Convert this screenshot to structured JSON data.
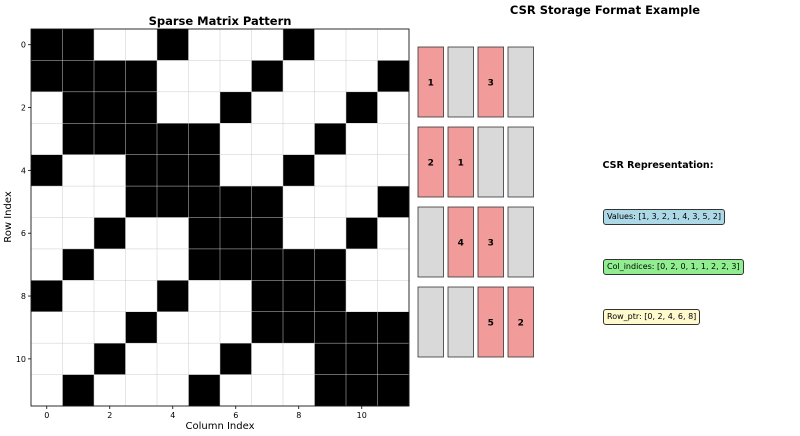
{
  "chart_data": [
    {
      "type": "heatmap",
      "title": "Sparse Matrix Pattern",
      "xlabel": "Column Index",
      "ylabel": "Row Index",
      "xticks": [
        "0",
        "2",
        "4",
        "6",
        "8",
        "10"
      ],
      "yticks": [
        "0",
        "2",
        "4",
        "6",
        "8",
        "10"
      ],
      "grid": true,
      "colors": {
        "filled": "#000000",
        "empty": "#ffffff",
        "grid": "#cccccc"
      },
      "matrix": [
        [
          1,
          1,
          0,
          0,
          1,
          0,
          0,
          0,
          1,
          0,
          0,
          0
        ],
        [
          1,
          1,
          1,
          1,
          0,
          0,
          0,
          1,
          0,
          0,
          0,
          1
        ],
        [
          0,
          1,
          1,
          1,
          0,
          0,
          1,
          0,
          0,
          0,
          1,
          0
        ],
        [
          0,
          1,
          1,
          1,
          1,
          1,
          0,
          0,
          0,
          1,
          0,
          0
        ],
        [
          1,
          0,
          0,
          1,
          1,
          1,
          0,
          0,
          1,
          0,
          0,
          0
        ],
        [
          0,
          0,
          0,
          1,
          1,
          1,
          1,
          1,
          0,
          0,
          0,
          1
        ],
        [
          0,
          0,
          1,
          0,
          0,
          1,
          1,
          1,
          0,
          0,
          1,
          0
        ],
        [
          0,
          1,
          0,
          0,
          0,
          1,
          1,
          1,
          1,
          1,
          0,
          0
        ],
        [
          1,
          0,
          0,
          0,
          1,
          0,
          0,
          1,
          1,
          1,
          0,
          0
        ],
        [
          0,
          0,
          0,
          1,
          0,
          0,
          0,
          1,
          1,
          1,
          1,
          1
        ],
        [
          0,
          0,
          1,
          0,
          0,
          0,
          1,
          0,
          0,
          1,
          1,
          1
        ],
        [
          0,
          1,
          0,
          0,
          0,
          1,
          0,
          0,
          0,
          1,
          1,
          1
        ]
      ]
    },
    {
      "type": "diagram",
      "title": "CSR Storage Format Example",
      "colors": {
        "nonzero": "#f29b9b",
        "zero": "#d9d9d9",
        "stroke": "#333333"
      },
      "cells": [
        [
          null,
          null,
          null,
          null
        ],
        [
          "1",
          null,
          "3",
          null
        ],
        [
          "2",
          "1",
          null,
          null
        ],
        [
          null,
          "4",
          "3",
          null
        ],
        [
          null,
          null,
          "5",
          "2"
        ]
      ]
    }
  ],
  "csr": {
    "heading": "CSR Representation:",
    "values_label": "Values: [1, 3, 2, 1, 4, 3, 5, 2]",
    "col_indices_label": "Col_indices: [0, 2, 0, 1, 1, 2, 2, 3]",
    "row_ptr_label": "Row_ptr: [0, 2, 4, 6, 8]",
    "colors": {
      "values": "#add8e6",
      "col_indices": "#90ee90",
      "row_ptr": "#fffacd"
    }
  }
}
